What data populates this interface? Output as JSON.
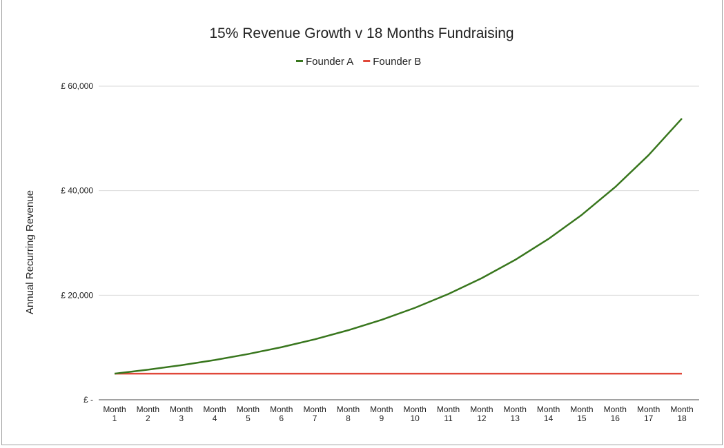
{
  "chart_data": {
    "type": "line",
    "title": "15% Revenue Growth v 18 Months Fundraising",
    "xlabel": "",
    "ylabel": "Annual Recurring Revenue",
    "categories": [
      "Month 1",
      "Month 2",
      "Month 3",
      "Month 4",
      "Month 5",
      "Month 6",
      "Month 7",
      "Month 8",
      "Month 9",
      "Month 10",
      "Month 11",
      "Month 12",
      "Month 13",
      "Month 14",
      "Month 15",
      "Month 16",
      "Month 17",
      "Month 18"
    ],
    "ylim": [
      0,
      60000
    ],
    "yticks": [
      0,
      20000,
      40000,
      60000
    ],
    "ytick_labels": [
      "£ -",
      "£ 20,000",
      "£ 40,000",
      "£ 60,000"
    ],
    "grid": true,
    "legend_position": "top",
    "series": [
      {
        "name": "Founder A",
        "color": "#38761d",
        "values": [
          5000,
          5750,
          6613,
          7604,
          8745,
          10057,
          11565,
          13300,
          15295,
          17589,
          20228,
          23262,
          26751,
          30764,
          35379,
          40685,
          46788,
          53806
        ]
      },
      {
        "name": "Founder B",
        "color": "#e0483a",
        "values": [
          5000,
          5000,
          5000,
          5000,
          5000,
          5000,
          5000,
          5000,
          5000,
          5000,
          5000,
          5000,
          5000,
          5000,
          5000,
          5000,
          5000,
          5000
        ]
      }
    ]
  }
}
